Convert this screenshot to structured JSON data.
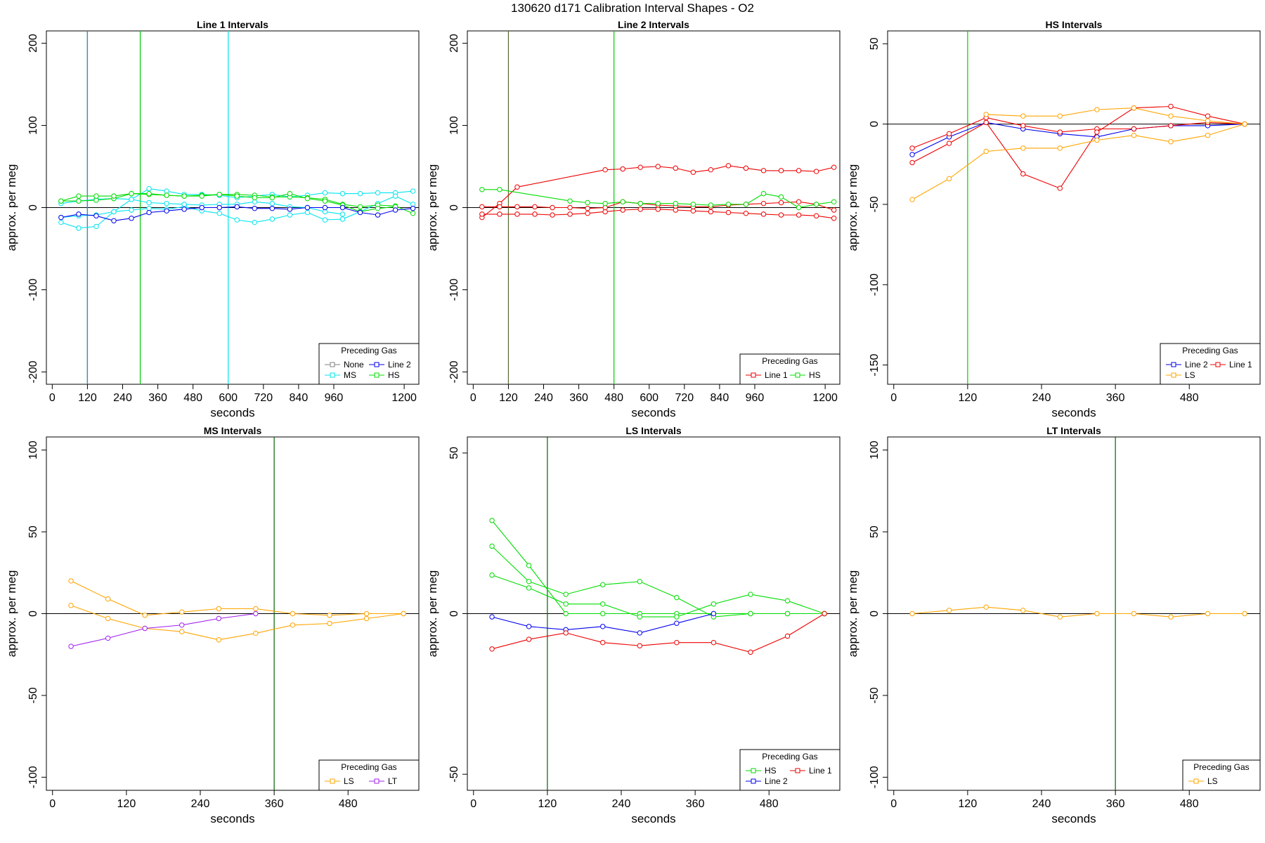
{
  "title": "130620   d171   Calibration Interval Shapes - O2",
  "chart_data": [
    {
      "type": "line",
      "title": "Line 1 Intervals",
      "xlabel": "seconds",
      "ylabel": "approx. per meg",
      "xlim": [
        -20,
        1250
      ],
      "ylim": [
        -215,
        215
      ],
      "xticks": [
        0,
        120,
        240,
        360,
        480,
        600,
        720,
        840,
        960,
        1200
      ],
      "yticks": [
        -200,
        -100,
        0,
        100,
        200
      ],
      "vlines": [
        {
          "x": 120,
          "color": "#000080"
        },
        {
          "x": 120,
          "color": "#00b0b0"
        },
        {
          "x": 300,
          "color": "#00cc00"
        },
        {
          "x": 600,
          "color": "#00e5ee"
        }
      ],
      "legend": {
        "title": "Preceding Gas",
        "position": "bottom-right",
        "columns": 2,
        "entries": [
          {
            "label": "None",
            "color": "#808080"
          },
          {
            "label": "Line 2",
            "color": "#0000ee"
          },
          {
            "label": "MS",
            "color": "#00e5ee"
          },
          {
            "label": "HS",
            "color": "#00dd00"
          }
        ]
      },
      "series": [
        {
          "color": "#00e5ee",
          "x": [
            30,
            90,
            150,
            210,
            270,
            330,
            390,
            450,
            510,
            570,
            630,
            690,
            750,
            810,
            870,
            930,
            990,
            1050,
            1110,
            1170,
            1230
          ],
          "y": [
            -18,
            -25,
            -23,
            -5,
            10,
            23,
            20,
            16,
            16,
            15,
            12,
            14,
            16,
            13,
            15,
            18,
            17,
            17,
            18,
            18,
            20
          ]
        },
        {
          "color": "#00e5ee",
          "x": [
            30,
            90,
            150,
            210,
            270,
            330,
            390,
            450,
            510,
            570,
            630,
            690,
            750,
            810,
            870,
            930,
            990,
            1050,
            1110,
            1170,
            1230
          ],
          "y": [
            -12,
            -10,
            -9,
            -5,
            -3,
            -1,
            -2,
            1,
            -4,
            -7,
            -15,
            -18,
            -14,
            -9,
            -6,
            -15,
            -14,
            -5,
            5,
            14,
            4
          ]
        },
        {
          "color": "#00e5ee",
          "x": [
            30,
            90,
            150,
            210,
            270,
            330,
            390,
            450,
            510,
            570,
            630,
            690,
            750,
            810,
            870,
            930,
            990
          ],
          "y": [
            5,
            8,
            10,
            11,
            10,
            6,
            5,
            4,
            3,
            4,
            4,
            7,
            5,
            1,
            0,
            -5,
            -8
          ]
        },
        {
          "color": "#00dd00",
          "x": [
            30,
            90,
            150,
            210,
            270,
            330,
            390,
            450,
            510,
            570,
            630,
            690,
            750,
            810,
            870,
            930,
            990,
            1050,
            1110,
            1170,
            1230
          ],
          "y": [
            8,
            8,
            9,
            11,
            17,
            16,
            15,
            14,
            15,
            16,
            16,
            15,
            13,
            13,
            12,
            10,
            4,
            1,
            3,
            2,
            -7
          ]
        },
        {
          "color": "#00dd00",
          "x": [
            30,
            90,
            150,
            210,
            270,
            330,
            390,
            450,
            510,
            570,
            630,
            690,
            750,
            810,
            870,
            930,
            990,
            1050,
            1110,
            1170
          ],
          "y": [
            8,
            14,
            14,
            14,
            17,
            17,
            15,
            14,
            14,
            16,
            14,
            12,
            12,
            17,
            11,
            8,
            3,
            -5,
            -1,
            1
          ]
        },
        {
          "color": "#0000ee",
          "x": [
            30,
            90,
            150,
            210,
            270,
            330,
            390,
            450,
            510,
            570,
            630,
            690,
            750,
            810,
            870,
            930,
            990,
            1050,
            1110,
            1170,
            1230
          ],
          "y": [
            -12,
            -8,
            -10,
            -16,
            -13,
            -6,
            -4,
            -2,
            0,
            0,
            1,
            -1,
            -1,
            -2,
            0,
            0,
            0,
            -6,
            -9,
            -3,
            -1
          ]
        }
      ]
    },
    {
      "type": "line",
      "title": "Line 2 Intervals",
      "xlabel": "seconds",
      "ylabel": "approx. per meg",
      "xlim": [
        -20,
        1250
      ],
      "ylim": [
        -215,
        215
      ],
      "xticks": [
        0,
        120,
        240,
        360,
        480,
        600,
        720,
        840,
        960,
        1200
      ],
      "yticks": [
        -200,
        -100,
        0,
        100,
        200
      ],
      "vlines": [
        {
          "x": 120,
          "color": "#556b2f"
        },
        {
          "x": 480,
          "color": "#00cc00"
        }
      ],
      "legend": {
        "title": "Preceding Gas",
        "position": "bottom-right",
        "columns": 2,
        "entries": [
          {
            "label": "Line 1",
            "color": "#ee0000"
          },
          {
            "label": "HS",
            "color": "#00dd00"
          }
        ]
      },
      "series": [
        {
          "color": "#ee0000",
          "x": [
            30,
            90,
            150,
            450,
            510,
            570,
            630,
            690,
            750,
            810,
            870,
            930,
            990,
            1050,
            1110,
            1170,
            1230
          ],
          "y": [
            -12,
            5,
            25,
            46,
            47,
            49,
            50,
            48,
            43,
            46,
            51,
            48,
            45,
            45,
            45,
            44,
            49
          ]
        },
        {
          "color": "#ee0000",
          "x": [
            30,
            90,
            150,
            210,
            270,
            330,
            390,
            450,
            510,
            570,
            630,
            690,
            750,
            810,
            870,
            930,
            990,
            1050,
            1110,
            1170,
            1230
          ],
          "y": [
            -8,
            -8,
            -8,
            -8,
            -9,
            -8,
            -7,
            -5,
            -3,
            -2,
            -2,
            -3,
            -4,
            -5,
            -6,
            -7,
            -8,
            -9,
            -9,
            -10,
            -13
          ]
        },
        {
          "color": "#ee0000",
          "x": [
            30,
            90,
            150,
            210,
            270,
            330,
            390,
            450,
            510,
            570,
            630,
            690,
            750,
            810,
            870,
            930,
            990,
            1050,
            1110,
            1170,
            1230
          ],
          "y": [
            1,
            1,
            1,
            1,
            0,
            0,
            -1,
            0,
            7,
            5,
            3,
            2,
            1,
            1,
            3,
            4,
            5,
            6,
            7,
            4,
            -3
          ]
        },
        {
          "color": "#00dd00",
          "x": [
            30,
            90,
            330,
            390,
            450,
            510,
            570,
            630,
            690,
            750,
            810,
            870,
            930,
            990,
            1050,
            1110,
            1170,
            1230
          ],
          "y": [
            22,
            22,
            8,
            6,
            5,
            7,
            5,
            5,
            5,
            4,
            3,
            4,
            4,
            17,
            13,
            0,
            4,
            7
          ]
        }
      ]
    },
    {
      "type": "line",
      "title": "HS Intervals",
      "xlabel": "seconds",
      "ylabel": "approx. per meg",
      "xlim": [
        -10,
        595
      ],
      "ylim": [
        -162,
        58
      ],
      "xticks": [
        0,
        120,
        240,
        360,
        480
      ],
      "yticks": [
        -150,
        -100,
        -50,
        0,
        50
      ],
      "vlines": [
        {
          "x": 120,
          "color": "#00cc00"
        }
      ],
      "legend": {
        "title": "Preceding Gas",
        "position": "bottom-right",
        "columns": 2,
        "entries": [
          {
            "label": "Line 2",
            "color": "#0000ee"
          },
          {
            "label": "Line 1",
            "color": "#ee0000"
          },
          {
            "label": "LS",
            "color": "#ffa500"
          }
        ]
      },
      "series": [
        {
          "color": "#0000ee",
          "x": [
            30,
            90,
            150,
            210,
            270,
            330,
            390,
            450,
            510,
            570
          ],
          "y": [
            -19,
            -8,
            1,
            -3,
            -6,
            -8,
            -3,
            -1,
            -1,
            0
          ]
        },
        {
          "color": "#ee0000",
          "x": [
            30,
            90,
            150,
            210,
            270,
            330,
            390,
            450,
            510,
            570
          ],
          "y": [
            -15,
            -6,
            4,
            -1,
            -5,
            -3,
            -3,
            -1,
            1,
            0
          ]
        },
        {
          "color": "#ee0000",
          "x": [
            30,
            90,
            150,
            210,
            270,
            330,
            390,
            450,
            510,
            570
          ],
          "y": [
            -24,
            -12,
            1,
            -31,
            -40,
            -5,
            10,
            11,
            5,
            0
          ]
        },
        {
          "color": "#ffa500",
          "x": [
            30,
            90,
            150,
            210,
            270,
            330,
            390,
            450,
            510,
            570
          ],
          "y": [
            -47,
            -34,
            -17,
            -15,
            -15,
            -10,
            -7,
            -11,
            -7,
            0
          ]
        },
        {
          "color": "#ffa500",
          "x": [
            150,
            210,
            270,
            330,
            390,
            450,
            510,
            570
          ],
          "y": [
            6,
            5,
            5,
            9,
            10,
            5,
            2,
            0
          ]
        }
      ]
    },
    {
      "type": "line",
      "title": "MS Intervals",
      "xlabel": "seconds",
      "ylabel": "approx. per meg",
      "xlim": [
        -10,
        595
      ],
      "ylim": [
        -108,
        108
      ],
      "xticks": [
        0,
        120,
        240,
        360,
        480
      ],
      "yticks": [
        -100,
        -50,
        0,
        50,
        100
      ],
      "vlines": [
        {
          "x": 360,
          "color": "#006400"
        }
      ],
      "legend": {
        "title": "Preceding Gas",
        "position": "bottom-right",
        "columns": 2,
        "entries": [
          {
            "label": "LS",
            "color": "#ffa500"
          },
          {
            "label": "LT",
            "color": "#a020f0"
          }
        ]
      },
      "series": [
        {
          "color": "#ffa500",
          "x": [
            30,
            90,
            150,
            210,
            270,
            330,
            390,
            450,
            510,
            570
          ],
          "y": [
            20,
            9,
            -1,
            1,
            3,
            3,
            0,
            -1,
            0,
            0
          ]
        },
        {
          "color": "#ffa500",
          "x": [
            30,
            90,
            150,
            210,
            270,
            330,
            390,
            450,
            510,
            570
          ],
          "y": [
            5,
            -3,
            -9,
            -11,
            -16,
            -12,
            -7,
            -6,
            -3,
            0
          ]
        },
        {
          "color": "#a020f0",
          "x": [
            30,
            90,
            150,
            210,
            270,
            330
          ],
          "y": [
            -20,
            -15,
            -9,
            -7,
            -3,
            0
          ]
        }
      ]
    },
    {
      "type": "line",
      "title": "LS Intervals",
      "xlabel": "seconds",
      "ylabel": "approx. per meg",
      "xlim": [
        -10,
        595
      ],
      "ylim": [
        -55,
        55
      ],
      "xticks": [
        0,
        120,
        240,
        360,
        480
      ],
      "yticks": [
        -50,
        0,
        50
      ],
      "vlines": [
        {
          "x": 120,
          "color": "#006400"
        }
      ],
      "legend": {
        "title": "Preceding Gas",
        "position": "bottom-right",
        "columns": 2,
        "entries": [
          {
            "label": "HS",
            "color": "#00dd00"
          },
          {
            "label": "Line 1",
            "color": "#ee0000"
          },
          {
            "label": "Line 2",
            "color": "#0000ee"
          }
        ]
      },
      "series": [
        {
          "color": "#00dd00",
          "x": [
            30,
            90,
            150,
            210,
            270,
            330,
            390,
            450,
            510,
            570
          ],
          "y": [
            29,
            15,
            0,
            0,
            0,
            0,
            0,
            0,
            0,
            0
          ]
        },
        {
          "color": "#00dd00",
          "x": [
            30,
            90,
            150,
            210,
            270,
            330,
            390,
            450,
            510,
            570
          ],
          "y": [
            21,
            10,
            6,
            9,
            10,
            5,
            -1,
            0,
            0,
            0
          ]
        },
        {
          "color": "#00dd00",
          "x": [
            30,
            90,
            150,
            210,
            270,
            330,
            390,
            450,
            510,
            570
          ],
          "y": [
            12,
            8,
            3,
            3,
            -1,
            -1,
            3,
            6,
            4,
            0
          ]
        },
        {
          "color": "#0000ee",
          "x": [
            30,
            90,
            150,
            210,
            270,
            330,
            390
          ],
          "y": [
            -1,
            -4,
            -5,
            -4,
            -6,
            -3,
            0
          ]
        },
        {
          "color": "#ee0000",
          "x": [
            30,
            90,
            150,
            210,
            270,
            330,
            390,
            450,
            510,
            570
          ],
          "y": [
            -11,
            -8,
            -6,
            -9,
            -10,
            -9,
            -9,
            -12,
            -7,
            0
          ]
        }
      ]
    },
    {
      "type": "line",
      "title": "LT Intervals",
      "xlabel": "seconds",
      "ylabel": "approx. per meg",
      "xlim": [
        -10,
        595
      ],
      "ylim": [
        -108,
        108
      ],
      "xticks": [
        0,
        120,
        240,
        360,
        480
      ],
      "yticks": [
        -100,
        -50,
        0,
        50,
        100
      ],
      "vlines": [
        {
          "x": 360,
          "color": "#006400"
        }
      ],
      "legend": {
        "title": "Preceding Gas",
        "position": "bottom-right",
        "columns": 1,
        "entries": [
          {
            "label": "LS",
            "color": "#ffa500"
          }
        ]
      },
      "series": [
        {
          "color": "#ffa500",
          "x": [
            30,
            90,
            150,
            210,
            270,
            330,
            390,
            450,
            510,
            570
          ],
          "y": [
            0,
            2,
            4,
            2,
            -2,
            0,
            0,
            -2,
            0,
            0
          ]
        }
      ]
    }
  ]
}
